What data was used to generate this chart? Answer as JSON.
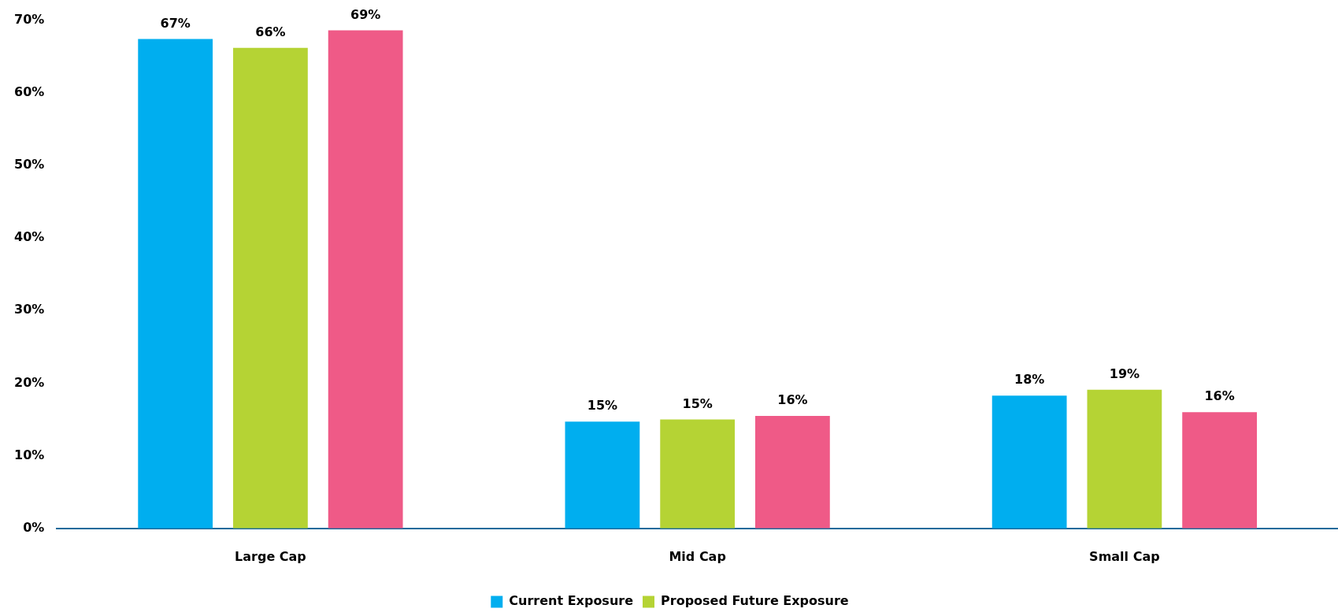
{
  "chart_data": {
    "type": "bar",
    "categories": [
      "Large Cap",
      "Mid Cap",
      "Small Cap"
    ],
    "series": [
      {
        "name": "Current Exposure",
        "color": "#00aeef",
        "values": [
          67.4,
          14.7,
          18.3
        ],
        "value_labels": [
          "67%",
          "15%",
          "18%"
        ]
      },
      {
        "name": "Proposed Future Exposure",
        "color": "#b5d334",
        "values": [
          66.2,
          15.0,
          19.1
        ],
        "value_labels": [
          "66%",
          "15%",
          "19%"
        ]
      },
      {
        "color": "#ef5a87",
        "values": [
          68.6,
          15.5,
          16.0
        ],
        "value_labels": [
          "69%",
          "16%",
          "16%"
        ]
      }
    ],
    "ylim": [
      0,
      70
    ],
    "yticks": [
      {
        "value": 0,
        "label": "0%"
      },
      {
        "value": 10,
        "label": "10%"
      },
      {
        "value": 20,
        "label": "20%"
      },
      {
        "value": 30,
        "label": "30%"
      },
      {
        "value": 40,
        "label": "40%"
      },
      {
        "value": 50,
        "label": "50%"
      },
      {
        "value": 60,
        "label": "60%"
      },
      {
        "value": 70,
        "label": "70%"
      }
    ],
    "grid": false,
    "legend": "bottom"
  }
}
